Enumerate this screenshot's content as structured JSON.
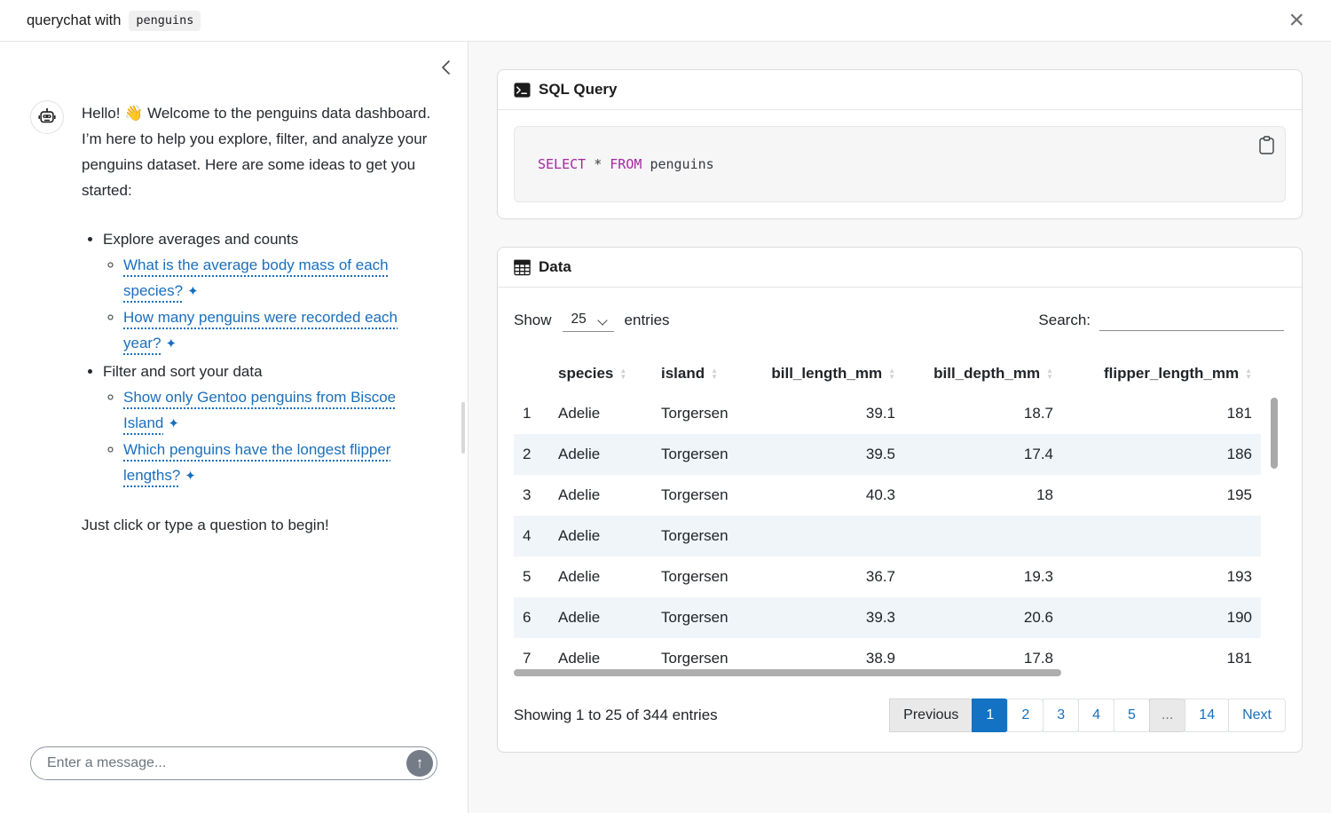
{
  "header": {
    "title_prefix": "querychat with",
    "title_code": "penguins",
    "close_glyph": "×"
  },
  "chat": {
    "message": {
      "intro": "Hello! 👋 Welcome to the penguins data dashboard. I’m here to help you explore, filter, and analyze your penguins dataset. Here are some ideas to get you started:",
      "sections": [
        {
          "label": "Explore averages and counts",
          "links": [
            "What is the average body mass of each species?",
            "How many penguins were recorded each year?"
          ]
        },
        {
          "label": "Filter and sort your data",
          "links": [
            "Show only Gentoo penguins from Biscoe Island",
            "Which penguins have the longest flipper lengths?"
          ]
        }
      ],
      "outro": "Just click or type a question to begin!",
      "sparkle_glyph": "✦"
    },
    "input_placeholder": "Enter a message...",
    "send_glyph": "↑"
  },
  "sql_card": {
    "title": "SQL Query",
    "code": {
      "keyword1": "SELECT",
      "operator": "*",
      "keyword2": "FROM",
      "table": "penguins"
    }
  },
  "data_card": {
    "title": "Data",
    "length_control": {
      "show_label": "Show",
      "selected": "25",
      "entries_label": "entries"
    },
    "search_label": "Search:",
    "table": {
      "columns": [
        {
          "label": "species",
          "align": "txt"
        },
        {
          "label": "island",
          "align": "txt"
        },
        {
          "label": "bill_length_mm",
          "align": "num"
        },
        {
          "label": "bill_depth_mm",
          "align": "num"
        },
        {
          "label": "flipper_length_mm",
          "align": "num"
        }
      ],
      "rows": [
        [
          "1",
          "Adelie",
          "Torgersen",
          "39.1",
          "18.7",
          "181"
        ],
        [
          "2",
          "Adelie",
          "Torgersen",
          "39.5",
          "17.4",
          "186"
        ],
        [
          "3",
          "Adelie",
          "Torgersen",
          "40.3",
          "18",
          "195"
        ],
        [
          "4",
          "Adelie",
          "Torgersen",
          "",
          "",
          ""
        ],
        [
          "5",
          "Adelie",
          "Torgersen",
          "36.7",
          "19.3",
          "193"
        ],
        [
          "6",
          "Adelie",
          "Torgersen",
          "39.3",
          "20.6",
          "190"
        ],
        [
          "7",
          "Adelie",
          "Torgersen",
          "38.9",
          "17.8",
          "181"
        ]
      ],
      "sort_asc_glyph": "▲",
      "sort_desc_glyph": "▼"
    },
    "info": "Showing 1 to 25 of 344 entries",
    "pagination": [
      {
        "label": "Previous",
        "state": "disabled"
      },
      {
        "label": "1",
        "state": "active"
      },
      {
        "label": "2",
        "state": "page"
      },
      {
        "label": "3",
        "state": "page"
      },
      {
        "label": "4",
        "state": "page"
      },
      {
        "label": "5",
        "state": "page"
      },
      {
        "label": "...",
        "state": "ellipsis"
      },
      {
        "label": "14",
        "state": "page"
      },
      {
        "label": "Next",
        "state": "page"
      }
    ]
  },
  "colors": {
    "link_blue": "#1a6fbc",
    "active_page_blue": "#1372c4",
    "sql_keyword": "#a626a4",
    "stripe_row": "#f0f5fa"
  }
}
